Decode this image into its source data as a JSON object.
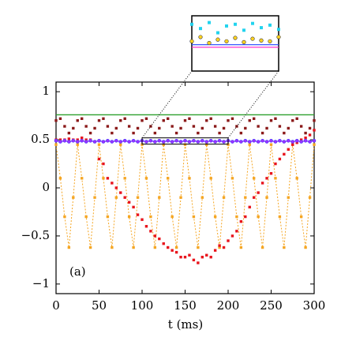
{
  "chart_data": [
    {
      "type": "line",
      "xlabel": "t (ms)",
      "annotation": "(a)",
      "xlim": [
        0,
        300
      ],
      "ylim": [
        -1.1,
        1.1
      ],
      "xticks": [
        0,
        50,
        100,
        150,
        200,
        250,
        300
      ],
      "yticks": [
        1,
        0.5,
        0,
        {
          "value": -0.5,
          "label": "−0.5"
        },
        {
          "value": -1,
          "label": "−1"
        }
      ],
      "x": [
        0,
        5,
        10,
        15,
        20,
        25,
        30,
        35,
        40,
        45,
        50,
        55,
        60,
        65,
        70,
        75,
        80,
        85,
        90,
        95,
        100,
        105,
        110,
        115,
        120,
        125,
        130,
        135,
        140,
        145,
        150,
        155,
        160,
        165,
        170,
        175,
        180,
        185,
        190,
        195,
        200,
        205,
        210,
        215,
        220,
        225,
        230,
        235,
        240,
        245,
        250,
        255,
        260,
        265,
        270,
        275,
        280,
        285,
        290,
        295,
        300
      ],
      "series": [
        {
          "color": "#2ca02c",
          "line": true,
          "marker": "none",
          "values": [
            0.76,
            0.76,
            0.76,
            0.76,
            0.76,
            0.76,
            0.76,
            0.76,
            0.76,
            0.76,
            0.76,
            0.76,
            0.76,
            0.76,
            0.76,
            0.76,
            0.76,
            0.76,
            0.76,
            0.76,
            0.76,
            0.76,
            0.76,
            0.76,
            0.76,
            0.76,
            0.76,
            0.76,
            0.76,
            0.76,
            0.76,
            0.76,
            0.76,
            0.76,
            0.76,
            0.76,
            0.76,
            0.76,
            0.76,
            0.76,
            0.76,
            0.76,
            0.76,
            0.76,
            0.76,
            0.76,
            0.76,
            0.76,
            0.76,
            0.76,
            0.76,
            0.76,
            0.76,
            0.76,
            0.76,
            0.76,
            0.76,
            0.76,
            0.76,
            0.76,
            0.76
          ]
        },
        {
          "color": "#8b1a1a",
          "line": false,
          "marker": "square",
          "values": [
            0.7,
            0.72,
            0.64,
            0.57,
            0.62,
            0.7,
            0.72,
            0.64,
            0.57,
            0.62,
            0.7,
            0.72,
            0.64,
            0.57,
            0.62,
            0.7,
            0.72,
            0.64,
            0.57,
            0.62,
            0.7,
            0.72,
            0.64,
            0.57,
            0.62,
            0.7,
            0.72,
            0.64,
            0.57,
            0.62,
            0.7,
            0.72,
            0.64,
            0.57,
            0.62,
            0.7,
            0.72,
            0.64,
            0.57,
            0.62,
            0.7,
            0.72,
            0.64,
            0.57,
            0.62,
            0.7,
            0.72,
            0.64,
            0.57,
            0.62,
            0.7,
            0.72,
            0.64,
            0.57,
            0.62,
            0.7,
            0.72,
            0.64,
            0.57,
            0.62,
            0.7
          ]
        },
        {
          "color": "#f5a623",
          "line": true,
          "dash": true,
          "marker": "square",
          "values": [
            0.45,
            0.1,
            -0.3,
            -0.62,
            -0.1,
            0.45,
            0.1,
            -0.3,
            -0.62,
            -0.1,
            0.45,
            0.1,
            -0.3,
            -0.62,
            -0.1,
            0.45,
            0.1,
            -0.3,
            -0.62,
            -0.1,
            0.45,
            0.1,
            -0.3,
            -0.62,
            -0.1,
            0.45,
            0.1,
            -0.3,
            -0.62,
            -0.1,
            0.45,
            0.1,
            -0.3,
            -0.62,
            -0.1,
            0.45,
            0.1,
            -0.3,
            -0.62,
            -0.1,
            0.45,
            0.1,
            -0.3,
            -0.62,
            -0.1,
            0.45,
            0.1,
            -0.3,
            -0.62,
            -0.1,
            0.45,
            0.1,
            -0.3,
            -0.62,
            -0.1,
            0.45,
            0.1,
            -0.3,
            -0.62,
            -0.1,
            0.45
          ]
        },
        {
          "color": "#e8141c",
          "line": false,
          "marker": "square",
          "values": [
            0.5,
            0.5,
            0.5,
            0.51,
            0.5,
            0.5,
            0.52,
            0.5,
            0.5,
            0.48,
            0.3,
            0.25,
            0.1,
            0.05,
            0,
            -0.05,
            -0.1,
            -0.15,
            -0.2,
            -0.28,
            -0.33,
            -0.4,
            -0.45,
            -0.5,
            -0.53,
            -0.58,
            -0.62,
            -0.65,
            -0.67,
            -0.72,
            -0.72,
            -0.7,
            -0.75,
            -0.78,
            -0.72,
            -0.7,
            -0.72,
            -0.65,
            -0.6,
            -0.62,
            -0.55,
            -0.5,
            -0.45,
            -0.35,
            -0.3,
            -0.2,
            -0.1,
            -0.05,
            0.05,
            0.1,
            0.15,
            0.25,
            0.3,
            0.35,
            0.4,
            0.45,
            0.47,
            0.5,
            0.52,
            0.55,
            0.6
          ]
        },
        {
          "color": "#9b30ff",
          "line": true,
          "marker": "circle",
          "values": [
            0.49,
            0.48,
            0.49,
            0.48,
            0.49,
            0.48,
            0.49,
            0.48,
            0.49,
            0.48,
            0.49,
            0.48,
            0.49,
            0.48,
            0.49,
            0.48,
            0.49,
            0.48,
            0.49,
            0.48,
            0.49,
            0.48,
            0.49,
            0.48,
            0.49,
            0.48,
            0.49,
            0.48,
            0.49,
            0.48,
            0.49,
            0.48,
            0.49,
            0.48,
            0.49,
            0.48,
            0.49,
            0.48,
            0.49,
            0.48,
            0.49,
            0.48,
            0.49,
            0.48,
            0.49,
            0.48,
            0.49,
            0.48,
            0.49,
            0.48,
            0.49,
            0.48,
            0.49,
            0.48,
            0.49,
            0.48,
            0.49,
            0.48,
            0.49,
            0.48,
            0.49
          ]
        }
      ]
    },
    {
      "type": "line",
      "xlim": [
        100,
        200
      ],
      "ylim": [
        0.455,
        0.52
      ],
      "x": [
        100,
        110,
        120,
        130,
        140,
        150,
        160,
        170,
        180,
        190,
        200
      ],
      "series": [
        {
          "color": "#ff33cc",
          "line": true,
          "marker": "none",
          "values": [
            0.483,
            0.483,
            0.483,
            0.483,
            0.483,
            0.483,
            0.483,
            0.483,
            0.483,
            0.483,
            0.483
          ]
        },
        {
          "color": "#3355ff",
          "line": true,
          "marker": "none",
          "values": [
            0.486,
            0.486,
            0.486,
            0.486,
            0.486,
            0.486,
            0.486,
            0.486,
            0.486,
            0.486,
            0.486
          ]
        },
        {
          "color": "#22d3ee",
          "line": false,
          "marker": "square",
          "values": [
            0.51,
            0.505,
            0.512,
            0.5,
            0.508,
            0.51,
            0.503,
            0.511,
            0.506,
            0.509,
            0.504
          ]
        },
        {
          "color": "#ffd21f",
          "line": false,
          "marker": "circle",
          "values": [
            0.49,
            0.495,
            0.488,
            0.492,
            0.49,
            0.494,
            0.489,
            0.493,
            0.491,
            0.49,
            0.495
          ]
        }
      ]
    }
  ]
}
